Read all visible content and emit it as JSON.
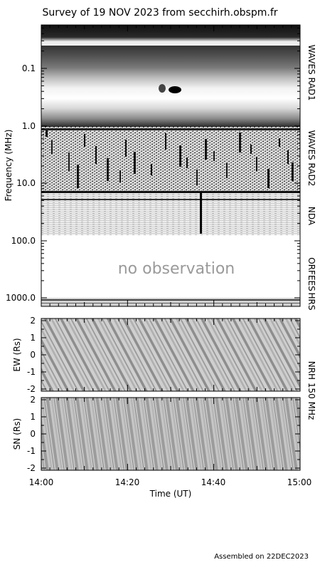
{
  "chart_data": [
    {
      "type": "heatmap",
      "title": "Survey of 19 NOV 2023 from secchirh.obspm.fr",
      "xlabel": "Time (UT)",
      "ylabel": "Frequency (MHz)",
      "yscale": "log",
      "ylim": [
        0.02,
        1500
      ],
      "y_ticks": [
        "0.1",
        "1.0",
        "10.0",
        "100.0",
        "1000.0"
      ],
      "x_ticks": [
        "14:00",
        "14:20",
        "14:40",
        "15:00"
      ],
      "xlim": [
        "14:00",
        "15:00"
      ],
      "bands": [
        {
          "name": "WAVES RAD1",
          "range_mhz": [
            0.02,
            1.0
          ]
        },
        {
          "name": "WAVES RAD2",
          "range_mhz": [
            1.0,
            13.8
          ]
        },
        {
          "name": "NDA",
          "range_mhz": [
            13.8,
            80
          ]
        },
        {
          "name": "ORFEES",
          "range_mhz": [
            144,
            1004
          ]
        },
        {
          "name": "HRS",
          "range_mhz": [
            1004,
            1500
          ]
        }
      ],
      "annotations": [
        "no observation"
      ],
      "grid": false
    },
    {
      "type": "heatmap",
      "ylabel": "EW (Rs)",
      "ylim": [
        -2,
        2
      ],
      "y_ticks": [
        "2",
        "1",
        "0",
        "-1",
        "-2"
      ],
      "xlim": [
        "14:00",
        "15:00"
      ],
      "side_label": "NRH 150 MHz"
    },
    {
      "type": "heatmap",
      "ylabel": "SN (Rs)",
      "ylim": [
        -2,
        2
      ],
      "y_ticks": [
        "2",
        "1",
        "0",
        "-1",
        "-2"
      ],
      "xlim": [
        "14:00",
        "15:00"
      ]
    }
  ],
  "footer": "Assembled on 22DEC2023"
}
